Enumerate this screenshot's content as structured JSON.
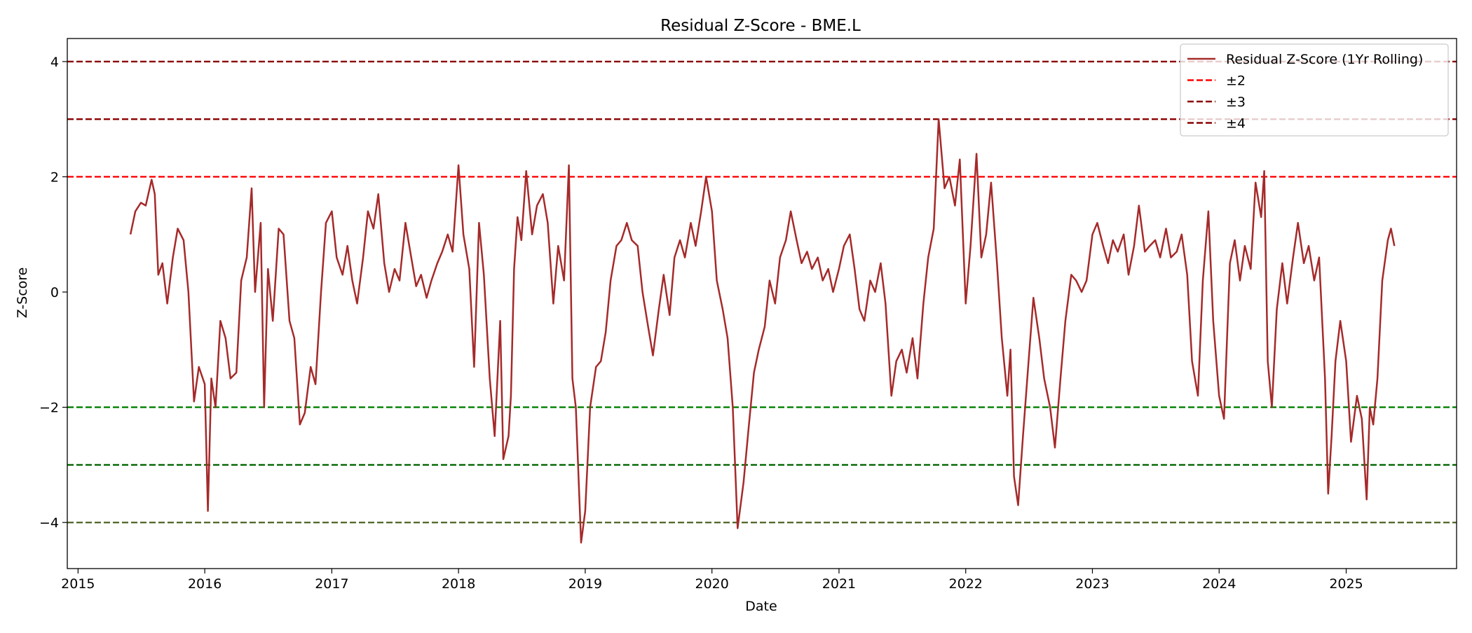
{
  "chart_data": {
    "type": "line",
    "title": "Residual Z-Score - BME.L",
    "xlabel": "Date",
    "ylabel": "Z-Score",
    "xlim": [
      "2014-12-01",
      "2025-11-15"
    ],
    "ylim": [
      -4.8,
      4.4
    ],
    "x_ticks": [
      "2015",
      "2016",
      "2017",
      "2018",
      "2019",
      "2020",
      "2021",
      "2022",
      "2023",
      "2024",
      "2025"
    ],
    "y_ticks": [
      4,
      2,
      0,
      -2,
      -4
    ],
    "y_tick_labels": [
      "4",
      "2",
      "0",
      "−2",
      "−4"
    ],
    "grid": false,
    "legend_position": "top-right",
    "series": [
      {
        "name": "Residual Z-Score (1Yr Rolling)",
        "color": "#a52a2a",
        "points": [
          [
            "2015-06-01",
            1.0
          ],
          [
            "2015-06-15",
            1.4
          ],
          [
            "2015-07-01",
            1.55
          ],
          [
            "2015-07-15",
            1.5
          ],
          [
            "2015-08-01",
            1.95
          ],
          [
            "2015-08-10",
            1.7
          ],
          [
            "2015-08-20",
            0.3
          ],
          [
            "2015-09-01",
            0.5
          ],
          [
            "2015-09-15",
            -0.2
          ],
          [
            "2015-10-01",
            0.6
          ],
          [
            "2015-10-15",
            1.1
          ],
          [
            "2015-11-01",
            0.9
          ],
          [
            "2015-11-15",
            0.0
          ],
          [
            "2015-12-01",
            -1.9
          ],
          [
            "2015-12-15",
            -1.3
          ],
          [
            "2016-01-01",
            -1.6
          ],
          [
            "2016-01-10",
            -3.8
          ],
          [
            "2016-01-20",
            -1.5
          ],
          [
            "2016-02-01",
            -2.0
          ],
          [
            "2016-02-15",
            -0.5
          ],
          [
            "2016-03-01",
            -0.8
          ],
          [
            "2016-03-15",
            -1.5
          ],
          [
            "2016-04-01",
            -1.4
          ],
          [
            "2016-04-15",
            0.2
          ],
          [
            "2016-05-01",
            0.6
          ],
          [
            "2016-05-15",
            1.8
          ],
          [
            "2016-05-25",
            0.0
          ],
          [
            "2016-06-10",
            1.2
          ],
          [
            "2016-06-20",
            -2.0
          ],
          [
            "2016-07-01",
            0.4
          ],
          [
            "2016-07-15",
            -0.5
          ],
          [
            "2016-08-01",
            1.1
          ],
          [
            "2016-08-15",
            1.0
          ],
          [
            "2016-09-01",
            -0.5
          ],
          [
            "2016-09-15",
            -0.8
          ],
          [
            "2016-10-01",
            -2.3
          ],
          [
            "2016-10-15",
            -2.1
          ],
          [
            "2016-11-01",
            -1.3
          ],
          [
            "2016-11-15",
            -1.6
          ],
          [
            "2016-12-01",
            0.0
          ],
          [
            "2016-12-15",
            1.2
          ],
          [
            "2017-01-01",
            1.4
          ],
          [
            "2017-01-15",
            0.6
          ],
          [
            "2017-02-01",
            0.3
          ],
          [
            "2017-02-15",
            0.8
          ],
          [
            "2017-03-01",
            0.2
          ],
          [
            "2017-03-15",
            -0.2
          ],
          [
            "2017-04-01",
            0.6
          ],
          [
            "2017-04-15",
            1.4
          ],
          [
            "2017-05-01",
            1.1
          ],
          [
            "2017-05-15",
            1.7
          ],
          [
            "2017-06-01",
            0.5
          ],
          [
            "2017-06-15",
            0.0
          ],
          [
            "2017-07-01",
            0.4
          ],
          [
            "2017-07-15",
            0.2
          ],
          [
            "2017-08-01",
            1.2
          ],
          [
            "2017-08-15",
            0.7
          ],
          [
            "2017-09-01",
            0.1
          ],
          [
            "2017-09-15",
            0.3
          ],
          [
            "2017-10-01",
            -0.1
          ],
          [
            "2017-10-15",
            0.2
          ],
          [
            "2017-11-01",
            0.5
          ],
          [
            "2017-11-15",
            0.7
          ],
          [
            "2017-12-01",
            1.0
          ],
          [
            "2017-12-15",
            0.7
          ],
          [
            "2018-01-01",
            2.2
          ],
          [
            "2018-01-15",
            1.0
          ],
          [
            "2018-02-01",
            0.4
          ],
          [
            "2018-02-15",
            -1.3
          ],
          [
            "2018-03-01",
            1.2
          ],
          [
            "2018-03-15",
            0.3
          ],
          [
            "2018-04-01",
            -1.5
          ],
          [
            "2018-04-15",
            -2.5
          ],
          [
            "2018-05-01",
            -0.5
          ],
          [
            "2018-05-10",
            -2.9
          ],
          [
            "2018-05-25",
            -2.5
          ],
          [
            "2018-06-01",
            -1.8
          ],
          [
            "2018-06-10",
            0.4
          ],
          [
            "2018-06-20",
            1.3
          ],
          [
            "2018-07-01",
            0.9
          ],
          [
            "2018-07-15",
            2.1
          ],
          [
            "2018-08-01",
            1.0
          ],
          [
            "2018-08-15",
            1.5
          ],
          [
            "2018-09-01",
            1.7
          ],
          [
            "2018-09-15",
            1.2
          ],
          [
            "2018-10-01",
            -0.2
          ],
          [
            "2018-10-15",
            0.8
          ],
          [
            "2018-11-01",
            0.2
          ],
          [
            "2018-11-15",
            2.2
          ],
          [
            "2018-11-25",
            -1.5
          ],
          [
            "2018-12-05",
            -2.0
          ],
          [
            "2018-12-20",
            -4.35
          ],
          [
            "2019-01-01",
            -3.8
          ],
          [
            "2019-01-15",
            -2.0
          ],
          [
            "2019-02-01",
            -1.3
          ],
          [
            "2019-02-15",
            -1.2
          ],
          [
            "2019-03-01",
            -0.7
          ],
          [
            "2019-03-15",
            0.2
          ],
          [
            "2019-04-01",
            0.8
          ],
          [
            "2019-04-15",
            0.9
          ],
          [
            "2019-05-01",
            1.2
          ],
          [
            "2019-05-15",
            0.9
          ],
          [
            "2019-06-01",
            0.8
          ],
          [
            "2019-06-15",
            0.0
          ],
          [
            "2019-07-01",
            -0.6
          ],
          [
            "2019-07-15",
            -1.1
          ],
          [
            "2019-08-01",
            -0.3
          ],
          [
            "2019-08-15",
            0.3
          ],
          [
            "2019-09-01",
            -0.4
          ],
          [
            "2019-09-15",
            0.6
          ],
          [
            "2019-10-01",
            0.9
          ],
          [
            "2019-10-15",
            0.6
          ],
          [
            "2019-11-01",
            1.2
          ],
          [
            "2019-11-15",
            0.8
          ],
          [
            "2019-12-01",
            1.4
          ],
          [
            "2019-12-15",
            2.0
          ],
          [
            "2020-01-01",
            1.4
          ],
          [
            "2020-01-15",
            0.2
          ],
          [
            "2020-02-01",
            -0.3
          ],
          [
            "2020-02-15",
            -0.8
          ],
          [
            "2020-03-01",
            -2.0
          ],
          [
            "2020-03-15",
            -4.1
          ],
          [
            "2020-04-01",
            -3.3
          ],
          [
            "2020-04-15",
            -2.4
          ],
          [
            "2020-05-01",
            -1.4
          ],
          [
            "2020-05-15",
            -1.0
          ],
          [
            "2020-06-01",
            -0.6
          ],
          [
            "2020-06-15",
            0.2
          ],
          [
            "2020-07-01",
            -0.2
          ],
          [
            "2020-07-15",
            0.6
          ],
          [
            "2020-08-01",
            0.9
          ],
          [
            "2020-08-15",
            1.4
          ],
          [
            "2020-09-01",
            0.9
          ],
          [
            "2020-09-15",
            0.5
          ],
          [
            "2020-10-01",
            0.7
          ],
          [
            "2020-10-15",
            0.4
          ],
          [
            "2020-11-01",
            0.6
          ],
          [
            "2020-11-15",
            0.2
          ],
          [
            "2020-12-01",
            0.4
          ],
          [
            "2020-12-15",
            0.0
          ],
          [
            "2021-01-01",
            0.4
          ],
          [
            "2021-01-15",
            0.8
          ],
          [
            "2021-02-01",
            1.0
          ],
          [
            "2021-02-15",
            0.4
          ],
          [
            "2021-03-01",
            -0.3
          ],
          [
            "2021-03-15",
            -0.5
          ],
          [
            "2021-04-01",
            0.2
          ],
          [
            "2021-04-15",
            0.0
          ],
          [
            "2021-05-01",
            0.5
          ],
          [
            "2021-05-15",
            -0.2
          ],
          [
            "2021-06-01",
            -1.8
          ],
          [
            "2021-06-15",
            -1.2
          ],
          [
            "2021-07-01",
            -1.0
          ],
          [
            "2021-07-15",
            -1.4
          ],
          [
            "2021-08-01",
            -0.8
          ],
          [
            "2021-08-15",
            -1.5
          ],
          [
            "2021-09-01",
            -0.2
          ],
          [
            "2021-09-15",
            0.6
          ],
          [
            "2021-10-01",
            1.1
          ],
          [
            "2021-10-15",
            3.0
          ],
          [
            "2021-11-01",
            1.8
          ],
          [
            "2021-11-15",
            2.0
          ],
          [
            "2021-12-01",
            1.5
          ],
          [
            "2021-12-15",
            2.3
          ],
          [
            "2022-01-01",
            -0.2
          ],
          [
            "2022-01-15",
            0.8
          ],
          [
            "2022-02-01",
            2.4
          ],
          [
            "2022-02-15",
            0.6
          ],
          [
            "2022-03-01",
            1.0
          ],
          [
            "2022-03-15",
            1.9
          ],
          [
            "2022-04-01",
            0.5
          ],
          [
            "2022-04-15",
            -0.8
          ],
          [
            "2022-05-01",
            -1.8
          ],
          [
            "2022-05-10",
            -1.0
          ],
          [
            "2022-05-20",
            -3.2
          ],
          [
            "2022-06-01",
            -3.7
          ],
          [
            "2022-06-15",
            -2.5
          ],
          [
            "2022-07-01",
            -1.2
          ],
          [
            "2022-07-15",
            -0.1
          ],
          [
            "2022-08-01",
            -0.8
          ],
          [
            "2022-08-15",
            -1.5
          ],
          [
            "2022-09-01",
            -2.0
          ],
          [
            "2022-09-15",
            -2.7
          ],
          [
            "2022-10-01",
            -1.5
          ],
          [
            "2022-10-15",
            -0.5
          ],
          [
            "2022-11-01",
            0.3
          ],
          [
            "2022-11-15",
            0.2
          ],
          [
            "2022-12-01",
            0.0
          ],
          [
            "2022-12-15",
            0.2
          ],
          [
            "2023-01-01",
            1.0
          ],
          [
            "2023-01-15",
            1.2
          ],
          [
            "2023-02-01",
            0.8
          ],
          [
            "2023-02-15",
            0.5
          ],
          [
            "2023-03-01",
            0.9
          ],
          [
            "2023-03-15",
            0.7
          ],
          [
            "2023-04-01",
            1.0
          ],
          [
            "2023-04-15",
            0.3
          ],
          [
            "2023-05-01",
            0.8
          ],
          [
            "2023-05-15",
            1.5
          ],
          [
            "2023-06-01",
            0.7
          ],
          [
            "2023-06-15",
            0.8
          ],
          [
            "2023-07-01",
            0.9
          ],
          [
            "2023-07-15",
            0.6
          ],
          [
            "2023-08-01",
            1.1
          ],
          [
            "2023-08-15",
            0.6
          ],
          [
            "2023-09-01",
            0.7
          ],
          [
            "2023-09-15",
            1.0
          ],
          [
            "2023-10-01",
            0.3
          ],
          [
            "2023-10-15",
            -1.2
          ],
          [
            "2023-11-01",
            -1.8
          ],
          [
            "2023-11-15",
            0.2
          ],
          [
            "2023-12-01",
            1.4
          ],
          [
            "2023-12-15",
            -0.5
          ],
          [
            "2024-01-01",
            -1.8
          ],
          [
            "2024-01-15",
            -2.2
          ],
          [
            "2024-02-01",
            0.5
          ],
          [
            "2024-02-15",
            0.9
          ],
          [
            "2024-03-01",
            0.2
          ],
          [
            "2024-03-15",
            0.8
          ],
          [
            "2024-04-01",
            0.4
          ],
          [
            "2024-04-15",
            1.9
          ],
          [
            "2024-05-01",
            1.3
          ],
          [
            "2024-05-10",
            2.1
          ],
          [
            "2024-05-20",
            -1.2
          ],
          [
            "2024-06-01",
            -2.0
          ],
          [
            "2024-06-15",
            -0.3
          ],
          [
            "2024-07-01",
            0.5
          ],
          [
            "2024-07-15",
            -0.2
          ],
          [
            "2024-08-01",
            0.6
          ],
          [
            "2024-08-15",
            1.2
          ],
          [
            "2024-09-01",
            0.5
          ],
          [
            "2024-09-15",
            0.8
          ],
          [
            "2024-10-01",
            0.2
          ],
          [
            "2024-10-15",
            0.6
          ],
          [
            "2024-11-01",
            -1.5
          ],
          [
            "2024-11-10",
            -3.5
          ],
          [
            "2024-11-20",
            -2.5
          ],
          [
            "2024-12-01",
            -1.2
          ],
          [
            "2024-12-15",
            -0.5
          ],
          [
            "2025-01-01",
            -1.2
          ],
          [
            "2025-01-15",
            -2.6
          ],
          [
            "2025-02-01",
            -1.8
          ],
          [
            "2025-02-15",
            -2.2
          ],
          [
            "2025-03-01",
            -3.6
          ],
          [
            "2025-03-10",
            -2.0
          ],
          [
            "2025-03-20",
            -2.3
          ],
          [
            "2025-04-01",
            -1.5
          ],
          [
            "2025-04-15",
            0.2
          ],
          [
            "2025-05-01",
            0.9
          ],
          [
            "2025-05-10",
            1.1
          ],
          [
            "2025-05-20",
            0.8
          ]
        ]
      }
    ],
    "reference_lines": [
      {
        "y": 4,
        "color": "#8b0000"
      },
      {
        "y": 3,
        "color": "#8b0000"
      },
      {
        "y": 2,
        "color": "#ff0000"
      },
      {
        "y": -2,
        "color": "#008000"
      },
      {
        "y": -3,
        "color": "#006400"
      },
      {
        "y": -4,
        "color": "#556b2f"
      }
    ],
    "legend": [
      {
        "label": "Residual Z-Score (1Yr Rolling)",
        "color": "#a52a2a",
        "style": "solid"
      },
      {
        "label": "±2",
        "color": "#ff0000",
        "style": "dashed"
      },
      {
        "label": "±3",
        "color": "#8b0000",
        "style": "dashed"
      },
      {
        "label": "±4",
        "color": "#8b0000",
        "style": "dashed"
      }
    ]
  }
}
